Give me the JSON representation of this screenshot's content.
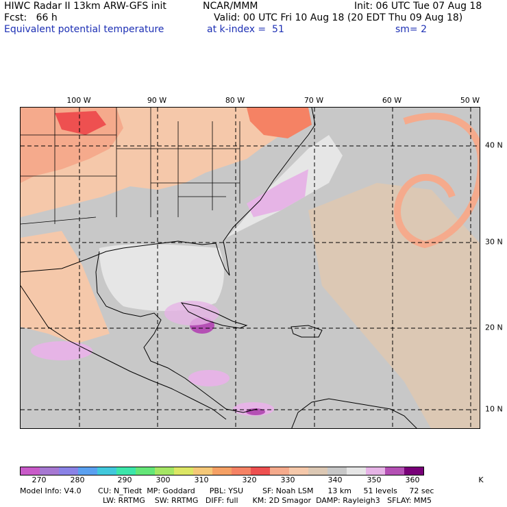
{
  "header": {
    "title": "HIWC Radar II 13km ARW-GFS init",
    "org": "NCAR/MMM",
    "init": "Init: 06 UTC Tue 07 Aug 18",
    "fcst": "Fcst:   66 h",
    "valid": "Valid: 00 UTC Fri 10 Aug 18 (20 EDT Thu 09 Aug 18)",
    "field": "Equivalent potential temperature",
    "level": "at k-index =  51",
    "smooth": "sm= 2"
  },
  "map": {
    "lon_labels": [
      "100 W",
      "90 W",
      "80 W",
      "70 W",
      "60 W",
      "50 W"
    ],
    "lat_labels": [
      "40 N",
      "30 N",
      "20 N",
      "10 N"
    ]
  },
  "colorbar": {
    "colors": [
      "#c85ac8",
      "#a678d2",
      "#8a82e6",
      "#5aa0f0",
      "#41c8dc",
      "#3ce6aa",
      "#64e678",
      "#a5e664",
      "#dce664",
      "#f5c878",
      "#f5a064",
      "#f58264",
      "#ee5050",
      "#f5aa8c",
      "#f5c8aa",
      "#dcc8b4",
      "#c8c8c8",
      "#e6e6e6",
      "#e6b4e6",
      "#b450b4",
      "#780078"
    ],
    "labels": [
      "270",
      "280",
      "290",
      "300",
      "310",
      "320",
      "330",
      "340",
      "350",
      "360"
    ],
    "unit": "K"
  },
  "footer": {
    "line1": "Model Info: V4.0       CU: N_Tiedt  MP: Goddard      PBL: YSU        SF: Noah LSM      13 km     51 levels     72 sec",
    "line2": "LW: RRTMG    SW: RRTMG   DIFF: full      KM: 2D Smagor  DAMP: Rayleigh3   SFLAY: MM5"
  }
}
